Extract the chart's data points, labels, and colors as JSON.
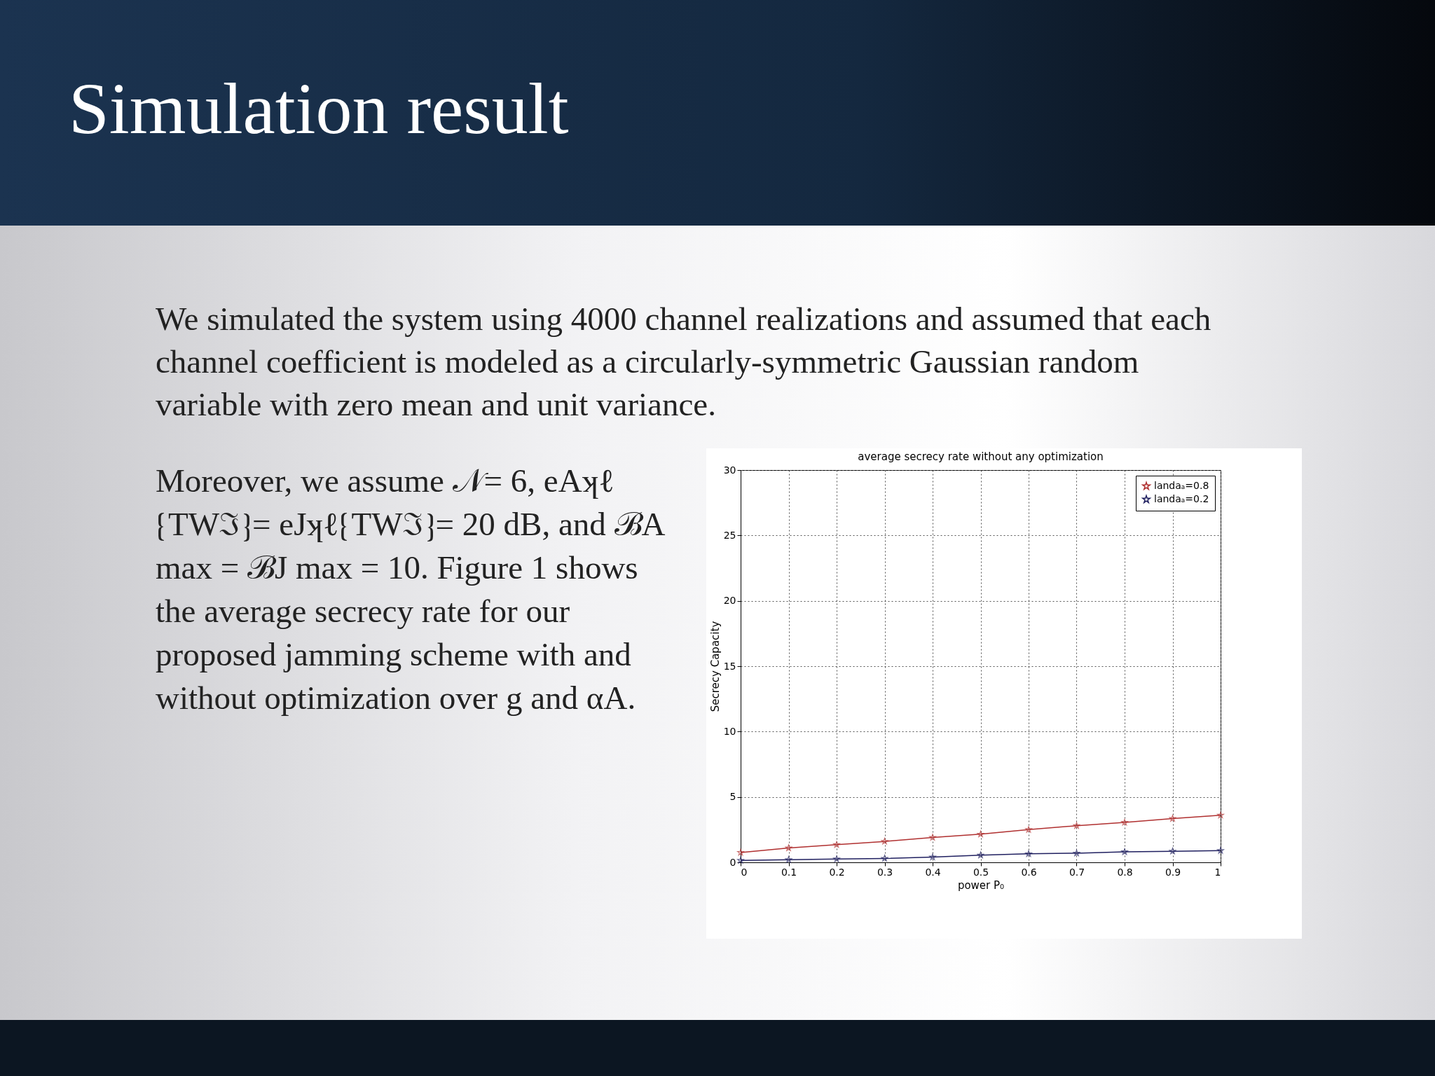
{
  "chart_data": {
    "type": "line",
    "title": "average secrecy rate without any optimization",
    "xlabel": "power P₀",
    "ylabel": "Secrecy Capacity",
    "annotations": [
      "Simulation result",
      "We simulated the system using 4000 channel realizations and assumed that each channel coefficient is modeled as a circularly-symmetric Gaussian random variable with zero mean and unit variance.",
      "Moreover, we assume 𝒩= 6, eAʞℓ ⁅TWℑ⁆= eJʞℓ⁅TWℑ⁆= 20 dB, and ℬA max = ℬJ max = 10. Figure 1 shows the average secrecy rate for our proposed jamming scheme with and without optimization over g and αA."
    ],
    "x": [
      0,
      0.1,
      0.2,
      0.3,
      0.4,
      0.5,
      0.6,
      0.7,
      0.8,
      0.9,
      1
    ],
    "series": [
      {
        "name": "landaₐ=0.8",
        "color": "#b03030",
        "values": [
          0.75,
          1.1,
          1.35,
          1.6,
          1.9,
          2.15,
          2.5,
          2.8,
          3.05,
          3.35,
          3.6
        ]
      },
      {
        "name": "landaₐ=0.2",
        "color": "#202060",
        "values": [
          0.15,
          0.2,
          0.25,
          0.3,
          0.4,
          0.55,
          0.65,
          0.7,
          0.8,
          0.85,
          0.9
        ]
      }
    ],
    "xlim": [
      0,
      1
    ],
    "xticks": [
      0,
      0.1,
      0.2,
      0.3,
      0.4,
      0.5,
      0.6,
      0.7,
      0.8,
      0.9,
      1
    ],
    "ylim": [
      0,
      30
    ],
    "yticks": [
      0,
      5,
      10,
      15,
      20,
      25,
      30
    ],
    "grid": true,
    "legend": "top right",
    "marker": "star",
    "line_style": "solid"
  }
}
